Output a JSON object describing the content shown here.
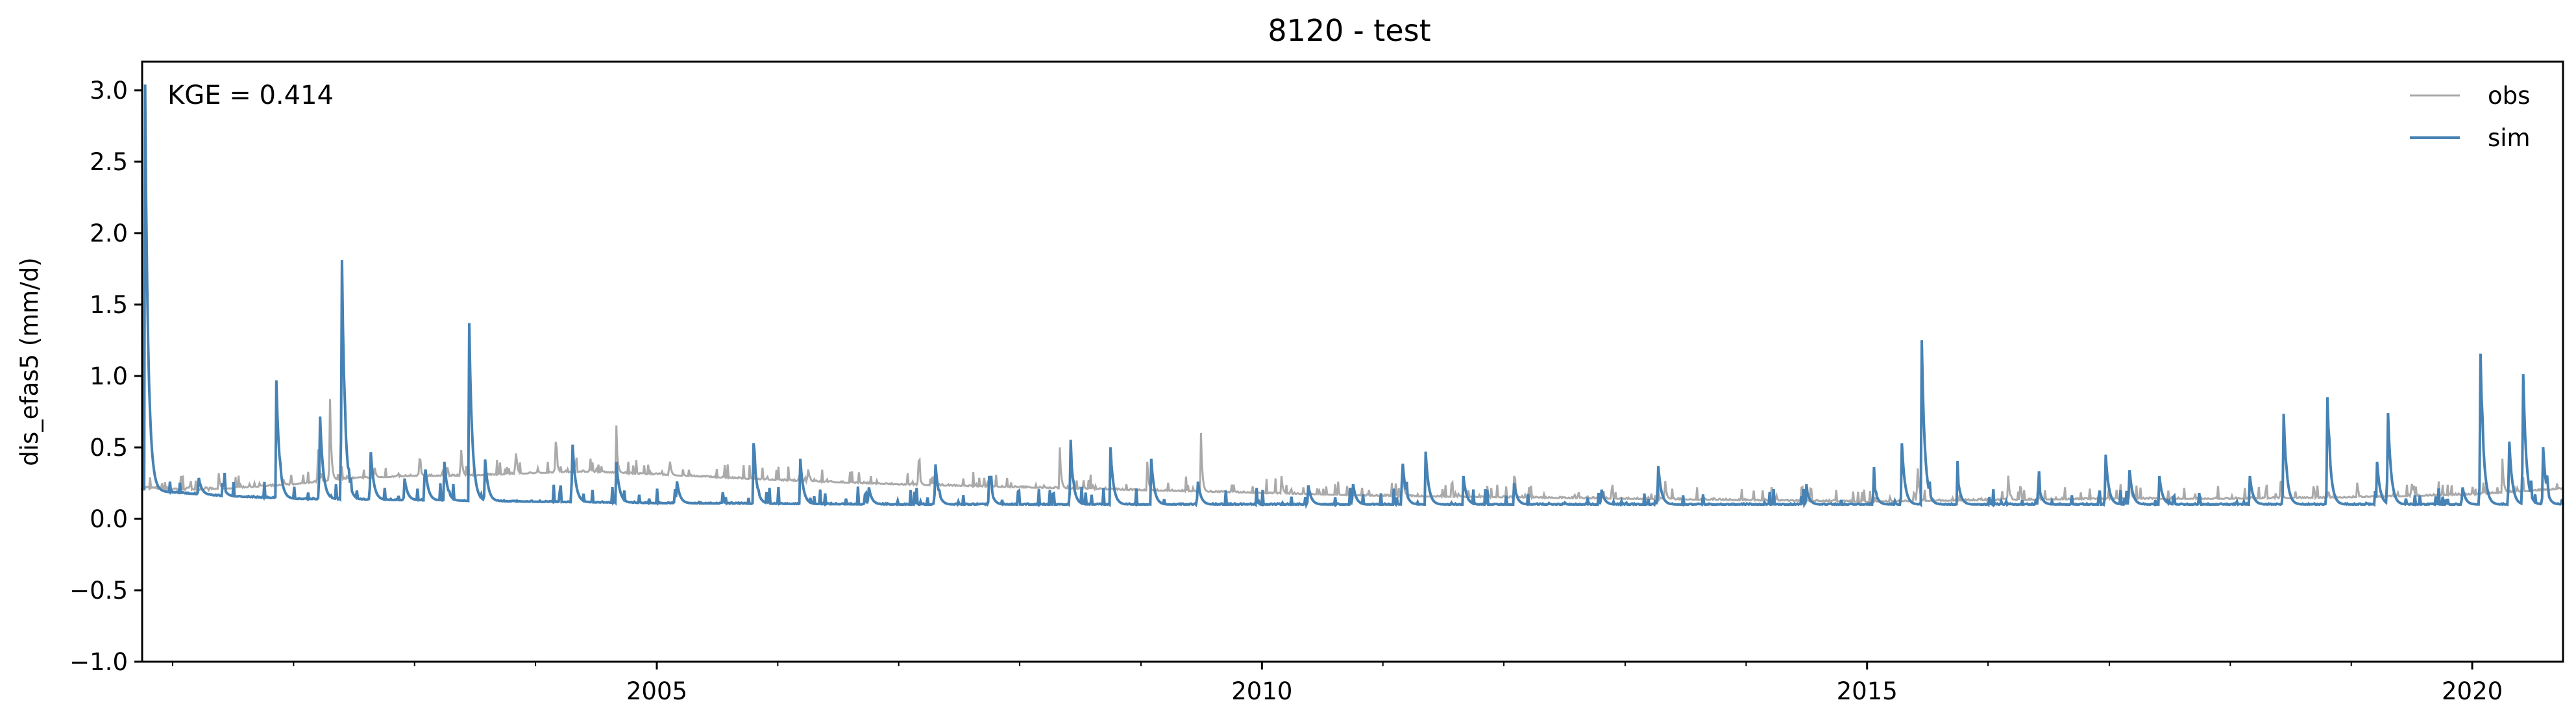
{
  "chart_data": {
    "type": "line",
    "title": "8120 - test",
    "xlabel": "",
    "ylabel": "dis_efas5 (mm/d)",
    "x_range": [
      "2000-10-01",
      "2020-10-01"
    ],
    "ylim": [
      -1.0,
      3.2
    ],
    "yticks": [
      -1.0,
      -0.5,
      0.0,
      0.5,
      1.0,
      1.5,
      2.0,
      2.5,
      3.0
    ],
    "ytick_labels": [
      "−1.0",
      "−0.5",
      "0.0",
      "0.5",
      "1.0",
      "1.5",
      "2.0",
      "2.5",
      "3.0"
    ],
    "xtick_labels": [
      "2005",
      "2010",
      "2015",
      "2020"
    ],
    "xticks": [
      "2005-01-01",
      "2010-01-01",
      "2015-01-01",
      "2020-01-01"
    ],
    "annotation": "KGE = 0.414",
    "legend_position": "top-right",
    "grid": false,
    "series": [
      {
        "name": "obs",
        "color": "#aaaaaa",
        "points": [
          [
            "2000-10-01",
            0.22
          ],
          [
            "2001-01-01",
            0.21
          ],
          [
            "2001-06-01",
            0.21
          ],
          [
            "2002-01-01",
            0.24
          ],
          [
            "2002-06-01",
            0.28
          ],
          [
            "2003-01-01",
            0.3
          ],
          [
            "2003-06-01",
            0.3
          ],
          [
            "2004-01-01",
            0.32
          ],
          [
            "2004-06-01",
            0.33
          ],
          [
            "2005-01-01",
            0.31
          ],
          [
            "2006-01-01",
            0.27
          ],
          [
            "2007-01-01",
            0.24
          ],
          [
            "2008-01-01",
            0.22
          ],
          [
            "2009-01-01",
            0.2
          ],
          [
            "2010-01-01",
            0.18
          ],
          [
            "2011-01-01",
            0.16
          ],
          [
            "2012-01-01",
            0.15
          ],
          [
            "2013-01-01",
            0.14
          ],
          [
            "2014-01-01",
            0.13
          ],
          [
            "2015-01-01",
            0.12
          ],
          [
            "2016-01-01",
            0.13
          ],
          [
            "2017-01-01",
            0.14
          ],
          [
            "2018-01-01",
            0.14
          ],
          [
            "2019-01-01",
            0.15
          ],
          [
            "2020-01-01",
            0.17
          ],
          [
            "2020-10-01",
            0.21
          ]
        ],
        "peaks": [
          [
            "2001-05-20",
            0.32
          ],
          [
            "2001-12-01",
            0.28
          ],
          [
            "2002-03-15",
            0.55
          ],
          [
            "2002-04-20",
            1.0
          ],
          [
            "2002-09-01",
            0.4
          ],
          [
            "2003-01-15",
            0.45
          ],
          [
            "2003-05-20",
            0.6
          ],
          [
            "2003-11-01",
            0.55
          ],
          [
            "2004-03-01",
            0.6
          ],
          [
            "2004-09-01",
            0.58
          ],
          [
            "2005-02-10",
            0.4
          ],
          [
            "2006-04-01",
            0.4
          ],
          [
            "2007-03-01",
            0.45
          ],
          [
            "2007-10-01",
            0.3
          ],
          [
            "2008-05-01",
            0.5
          ],
          [
            "2009-01-20",
            0.4
          ],
          [
            "2009-07-01",
            0.6
          ],
          [
            "2010-03-01",
            0.3
          ],
          [
            "2011-03-01",
            0.4
          ],
          [
            "2012-02-01",
            0.3
          ],
          [
            "2013-05-01",
            0.3
          ],
          [
            "2015-06-01",
            0.5
          ],
          [
            "2016-03-01",
            0.35
          ],
          [
            "2017-03-01",
            0.42
          ],
          [
            "2018-06-01",
            0.3
          ],
          [
            "2019-07-01",
            0.3
          ],
          [
            "2020-04-01",
            0.42
          ]
        ]
      },
      {
        "name": "sim",
        "color": "#4682b4",
        "baseflow": [
          [
            "2000-10-01",
            0.2
          ],
          [
            "2001-06-01",
            0.16
          ],
          [
            "2002-01-01",
            0.14
          ],
          [
            "2003-01-01",
            0.13
          ],
          [
            "2004-01-01",
            0.12
          ],
          [
            "2005-01-01",
            0.11
          ],
          [
            "2007-01-01",
            0.1
          ],
          [
            "2009-01-01",
            0.1
          ],
          [
            "2011-01-01",
            0.1
          ],
          [
            "2013-01-01",
            0.1
          ],
          [
            "2015-01-01",
            0.1
          ],
          [
            "2017-01-01",
            0.1
          ],
          [
            "2019-01-01",
            0.1
          ],
          [
            "2020-10-01",
            0.1
          ]
        ],
        "peaks": [
          [
            "2000-10-10",
            3.04
          ],
          [
            "2001-03-20",
            0.3
          ],
          [
            "2001-06-01",
            0.25
          ],
          [
            "2001-11-10",
            0.97
          ],
          [
            "2002-03-20",
            0.86
          ],
          [
            "2002-05-25",
            2.23
          ],
          [
            "2002-08-20",
            0.55
          ],
          [
            "2002-12-01",
            0.3
          ],
          [
            "2003-02-01",
            0.4
          ],
          [
            "2003-04-01",
            0.4
          ],
          [
            "2003-06-15",
            1.37
          ],
          [
            "2003-08-01",
            0.45
          ],
          [
            "2004-04-20",
            0.62
          ],
          [
            "2004-09-01",
            0.4
          ],
          [
            "2005-03-01",
            0.3
          ],
          [
            "2005-10-20",
            0.53
          ],
          [
            "2006-03-10",
            0.42
          ],
          [
            "2006-10-01",
            0.25
          ],
          [
            "2007-04-20",
            0.45
          ],
          [
            "2007-10-01",
            0.3
          ],
          [
            "2008-06-01",
            0.56
          ],
          [
            "2008-10-01",
            0.49
          ],
          [
            "2009-02-01",
            0.42
          ],
          [
            "2009-06-20",
            0.3
          ],
          [
            "2010-05-20",
            0.25
          ],
          [
            "2010-10-01",
            0.28
          ],
          [
            "2011-03-01",
            0.42
          ],
          [
            "2011-05-10",
            0.47
          ],
          [
            "2011-09-01",
            0.3
          ],
          [
            "2012-02-01",
            0.25
          ],
          [
            "2012-10-20",
            0.23
          ],
          [
            "2013-04-10",
            0.4
          ],
          [
            "2014-07-01",
            0.23
          ],
          [
            "2015-01-20",
            0.28
          ],
          [
            "2015-04-15",
            0.58
          ],
          [
            "2015-06-15",
            1.25
          ],
          [
            "2015-10-01",
            0.3
          ],
          [
            "2016-06-01",
            0.25
          ],
          [
            "2016-12-20",
            0.49
          ],
          [
            "2017-03-01",
            0.4
          ],
          [
            "2017-06-01",
            0.3
          ],
          [
            "2018-03-01",
            0.3
          ],
          [
            "2018-06-10",
            0.81
          ],
          [
            "2018-10-20",
            0.94
          ],
          [
            "2019-03-20",
            0.4
          ],
          [
            "2019-04-20",
            0.9
          ],
          [
            "2019-12-01",
            0.25
          ],
          [
            "2020-01-25",
            1.28
          ],
          [
            "2020-04-20",
            0.65
          ],
          [
            "2020-06-01",
            1.24
          ],
          [
            "2020-08-01",
            0.55
          ]
        ]
      }
    ]
  }
}
